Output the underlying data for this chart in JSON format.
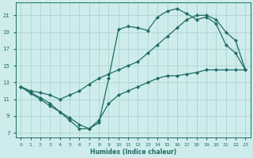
{
  "xlabel": "Humidex (Indice chaleur)",
  "bg_color": "#ceecea",
  "grid_color": "#b2d8d4",
  "line_color": "#1e6b65",
  "xlim": [
    -0.5,
    23.5
  ],
  "ylim": [
    6.5,
    22.5
  ],
  "yticks": [
    7,
    9,
    11,
    13,
    15,
    17,
    19,
    21
  ],
  "xticks": [
    0,
    1,
    2,
    3,
    4,
    5,
    6,
    7,
    8,
    9,
    10,
    11,
    12,
    13,
    14,
    15,
    16,
    17,
    18,
    19,
    20,
    21,
    22,
    23
  ],
  "line1_x": [
    0,
    1,
    2,
    3,
    4,
    5,
    6,
    7,
    8,
    9,
    10,
    11,
    12,
    13,
    14,
    15,
    16,
    17,
    18,
    19,
    20,
    21,
    22,
    23
  ],
  "line1_y": [
    12.5,
    11.7,
    11.0,
    10.2,
    9.5,
    8.5,
    7.5,
    7.5,
    8.2,
    13.5,
    19.3,
    19.7,
    19.5,
    19.2,
    20.8,
    21.5,
    21.8,
    21.2,
    20.5,
    20.8,
    20.0,
    17.5,
    16.5,
    14.5
  ],
  "line2_x": [
    0,
    1,
    2,
    3,
    4,
    5,
    6,
    7,
    8,
    9,
    10,
    11,
    12,
    13,
    14,
    15,
    16,
    17,
    18,
    19,
    20,
    21,
    22,
    23
  ],
  "line2_y": [
    12.5,
    12.0,
    11.8,
    11.5,
    11.0,
    11.5,
    12.0,
    12.8,
    13.5,
    14.0,
    14.5,
    15.0,
    15.5,
    16.5,
    17.5,
    18.5,
    19.5,
    20.5,
    21.0,
    21.0,
    20.5,
    19.0,
    18.0,
    14.5
  ],
  "line3_x": [
    0,
    1,
    2,
    3,
    4,
    5,
    6,
    7,
    8,
    9,
    10,
    11,
    12,
    13,
    14,
    15,
    16,
    17,
    18,
    19,
    20,
    21,
    22,
    23
  ],
  "line3_y": [
    12.5,
    11.8,
    11.2,
    10.5,
    9.5,
    8.8,
    8.0,
    7.5,
    8.5,
    10.5,
    11.5,
    12.0,
    12.5,
    13.0,
    13.5,
    13.8,
    13.8,
    14.0,
    14.2,
    14.5,
    14.5,
    14.5,
    14.5,
    14.5
  ]
}
